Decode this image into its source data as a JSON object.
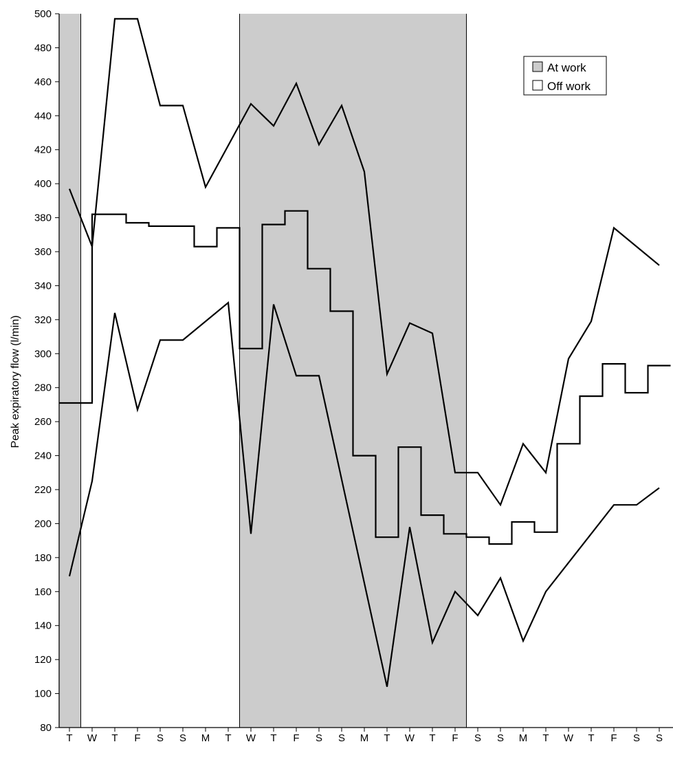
{
  "chart_data": {
    "type": "line",
    "title": "",
    "xlabel": "",
    "ylabel": "Peak expiratory flow (l/min)",
    "ylim": [
      80,
      500
    ],
    "yticks": [
      80,
      100,
      120,
      140,
      160,
      180,
      200,
      220,
      240,
      260,
      280,
      300,
      320,
      340,
      360,
      380,
      400,
      420,
      440,
      460,
      480,
      500
    ],
    "categories": [
      "T",
      "W",
      "T",
      "F",
      "S",
      "S",
      "M",
      "T",
      "W",
      "T",
      "F",
      "S",
      "S",
      "M",
      "T",
      "W",
      "T",
      "F",
      "S",
      "S",
      "M",
      "T",
      "W",
      "T",
      "F",
      "S",
      "S"
    ],
    "grid": false,
    "legend": {
      "placement": "top-right",
      "items": [
        {
          "label": "At work",
          "color": "#cccccc"
        },
        {
          "label": "Off work",
          "color": "#ffffff"
        }
      ]
    },
    "shaded_periods": [
      {
        "label": "At work",
        "from": -0.5,
        "to": 0.5
      },
      {
        "label": "At work",
        "from": 7.5,
        "to": 17.5
      }
    ],
    "series": [
      {
        "points": [
          [
            0,
            397
          ],
          [
            1,
            363
          ],
          [
            2,
            497
          ],
          [
            3,
            497
          ],
          [
            4,
            446
          ],
          [
            5,
            446
          ],
          [
            6,
            398
          ],
          [
            8,
            447
          ],
          [
            9,
            434
          ],
          [
            10,
            459
          ],
          [
            11,
            423
          ],
          [
            12,
            446
          ],
          [
            13,
            407
          ],
          [
            14,
            288
          ],
          [
            15,
            318
          ],
          [
            16,
            312
          ],
          [
            17,
            230
          ],
          [
            18,
            230
          ],
          [
            19,
            211
          ],
          [
            20,
            247
          ],
          [
            21,
            230
          ],
          [
            22,
            297
          ],
          [
            23,
            319
          ],
          [
            24,
            374
          ],
          [
            26,
            352
          ]
        ]
      },
      {
        "points": [
          [
            -0.5,
            271
          ],
          [
            1,
            271
          ],
          [
            1,
            382
          ],
          [
            2,
            382
          ],
          [
            2.5,
            382
          ],
          [
            2.5,
            377
          ],
          [
            3.5,
            377
          ],
          [
            3.5,
            375
          ],
          [
            5.5,
            375
          ],
          [
            5.5,
            363
          ],
          [
            6.5,
            363
          ],
          [
            6.5,
            374
          ],
          [
            7.5,
            374
          ],
          [
            7.5,
            303
          ],
          [
            8.5,
            303
          ],
          [
            8.5,
            376
          ],
          [
            9.5,
            376
          ],
          [
            9.5,
            384
          ],
          [
            10.5,
            384
          ],
          [
            10.5,
            350
          ],
          [
            11.5,
            350
          ],
          [
            11.5,
            325
          ],
          [
            12.5,
            325
          ],
          [
            12.5,
            240
          ],
          [
            13.5,
            240
          ],
          [
            13.5,
            192
          ],
          [
            14.5,
            192
          ],
          [
            14.5,
            245
          ],
          [
            15.5,
            245
          ],
          [
            15.5,
            205
          ],
          [
            16.5,
            205
          ],
          [
            16.5,
            194
          ],
          [
            17.5,
            194
          ],
          [
            17.5,
            192
          ],
          [
            18.5,
            192
          ],
          [
            18.5,
            188
          ],
          [
            19.5,
            188
          ],
          [
            19.5,
            201
          ],
          [
            20.5,
            201
          ],
          [
            20.5,
            195
          ],
          [
            21.5,
            195
          ],
          [
            21.5,
            247
          ],
          [
            22.5,
            247
          ],
          [
            22.5,
            275
          ],
          [
            23.5,
            275
          ],
          [
            23.5,
            294
          ],
          [
            24.5,
            294
          ],
          [
            24.5,
            277
          ],
          [
            25.5,
            277
          ],
          [
            25.5,
            293
          ],
          [
            26.5,
            293
          ]
        ]
      },
      {
        "points": [
          [
            0,
            169
          ],
          [
            1,
            225
          ],
          [
            2,
            324
          ],
          [
            3,
            267
          ],
          [
            4,
            308
          ],
          [
            5,
            308
          ],
          [
            7,
            330
          ],
          [
            8,
            194
          ],
          [
            9,
            329
          ],
          [
            10,
            287
          ],
          [
            11,
            287
          ],
          [
            14,
            104
          ],
          [
            15,
            198
          ],
          [
            16,
            130
          ],
          [
            17,
            160
          ],
          [
            18,
            146
          ],
          [
            19,
            168
          ],
          [
            20,
            131
          ],
          [
            21,
            160
          ],
          [
            24,
            211
          ],
          [
            25,
            211
          ],
          [
            26,
            221
          ]
        ]
      }
    ]
  }
}
